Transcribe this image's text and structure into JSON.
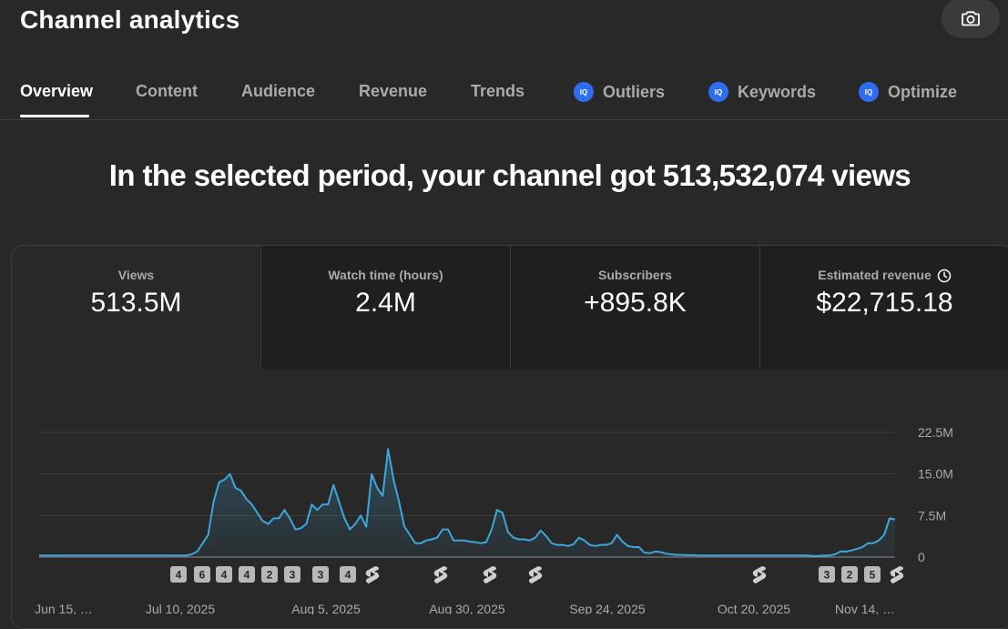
{
  "header": {
    "title": "Channel analytics",
    "screenshot_icon": "camera-icon"
  },
  "tabs": [
    {
      "label": "Overview",
      "active": true,
      "iq": false
    },
    {
      "label": "Content",
      "active": false,
      "iq": false
    },
    {
      "label": "Audience",
      "active": false,
      "iq": false
    },
    {
      "label": "Revenue",
      "active": false,
      "iq": false
    },
    {
      "label": "Trends",
      "active": false,
      "iq": false
    },
    {
      "label": "Outliers",
      "active": false,
      "iq": true
    },
    {
      "label": "Keywords",
      "active": false,
      "iq": true
    },
    {
      "label": "Optimize",
      "active": false,
      "iq": true
    }
  ],
  "iq_badge": "IQ",
  "headline": "In the selected period, your channel got 513,532,074 views",
  "metrics": [
    {
      "label": "Views",
      "value": "513.5M"
    },
    {
      "label": "Watch time (hours)",
      "value": "2.4M"
    },
    {
      "label": "Subscribers",
      "value": "+895.8K"
    },
    {
      "label": "Estimated revenue",
      "value": "$22,715.18",
      "icon": "clock-icon"
    }
  ],
  "colors": {
    "line": "#3ea6d9",
    "background": "#282828",
    "accent": "#2e6cf0"
  },
  "chart_data": {
    "type": "area",
    "ylim": [
      0,
      22500000
    ],
    "y_ticks": [
      "22.5M",
      "15.0M",
      "7.5M",
      "0"
    ],
    "x_tick_labels": [
      "Jun 15, …",
      "Jul 10, 2025",
      "Aug 5, 2025",
      "Aug 30, 2025",
      "Sep 24, 2025",
      "Oct 20, 2025",
      "Nov 14, …"
    ],
    "grid": true,
    "series": [
      {
        "values": [
          300000,
          300000,
          300000,
          300000,
          300000,
          300000,
          300000,
          300000,
          300000,
          300000,
          300000,
          300000,
          300000,
          300000,
          300000,
          300000,
          300000,
          300000,
          300000,
          300000,
          300000,
          300000,
          300000,
          300000,
          300000,
          300000,
          300000,
          300000,
          500000,
          1000000,
          2500000,
          4000000,
          10000000,
          13500000,
          14000000,
          15000000,
          12500000,
          12000000,
          10500000,
          9500000,
          8000000,
          6500000,
          6000000,
          7000000,
          7000000,
          8500000,
          7000000,
          5000000,
          5200000,
          6000000,
          9500000,
          8500000,
          9500000,
          9500000,
          13000000,
          10000000,
          7000000,
          5000000,
          6000000,
          7500000,
          5500000,
          15000000,
          12500000,
          11000000,
          19500000,
          14000000,
          10000000,
          5500000,
          4000000,
          2500000,
          2500000,
          3000000,
          3200000,
          3500000,
          5000000,
          5000000,
          3000000,
          3000000,
          3000000,
          2800000,
          2700000,
          2500000,
          2700000,
          5000000,
          8500000,
          8000000,
          4500000,
          3500000,
          3200000,
          3200000,
          3000000,
          3500000,
          4800000,
          3800000,
          2500000,
          2200000,
          2200000,
          2000000,
          2300000,
          3500000,
          3000000,
          2200000,
          2000000,
          2200000,
          2200000,
          2500000,
          4000000,
          2800000,
          2000000,
          1800000,
          1800000,
          800000,
          700000,
          1000000,
          900000,
          600000,
          500000,
          400000,
          400000,
          350000,
          350000,
          300000,
          300000,
          300000,
          300000,
          300000,
          300000,
          300000,
          300000,
          300000,
          300000,
          300000,
          300000,
          300000,
          300000,
          300000,
          300000,
          300000,
          300000,
          300000,
          300000,
          300000,
          200000,
          200000,
          300000,
          300000,
          500000,
          1000000,
          1000000,
          1200000,
          1500000,
          1800000,
          2500000,
          2500000,
          3000000,
          4000000,
          7000000,
          6800000
        ]
      }
    ]
  },
  "markers": [
    {
      "type": "count",
      "label": "4"
    },
    {
      "type": "count",
      "label": "6"
    },
    {
      "type": "count",
      "label": "4"
    },
    {
      "type": "count",
      "label": "4"
    },
    {
      "type": "count",
      "label": "2"
    },
    {
      "type": "count",
      "label": "3"
    },
    {
      "type": "count",
      "label": "3"
    },
    {
      "type": "count",
      "label": "4"
    },
    {
      "type": "shorts-icon"
    },
    {
      "type": "shorts-icon"
    },
    {
      "type": "shorts-icon"
    },
    {
      "type": "shorts-icon"
    },
    {
      "type": "shorts-icon"
    },
    {
      "type": "count",
      "label": "3"
    },
    {
      "type": "count",
      "label": "2"
    },
    {
      "type": "count",
      "label": "5"
    },
    {
      "type": "shorts-icon"
    }
  ]
}
